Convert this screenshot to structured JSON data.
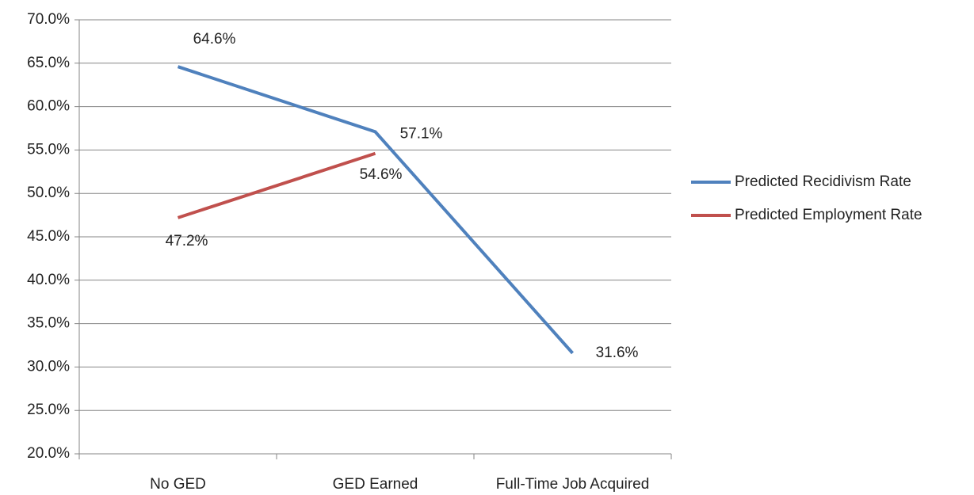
{
  "chart_data": {
    "type": "line",
    "categories": [
      "No GED",
      "GED Earned",
      "Full-Time Job Acquired"
    ],
    "series": [
      {
        "name": "Predicted Recidivism Rate",
        "color": "#4f81bd",
        "values": [
          64.6,
          57.1,
          31.6
        ],
        "value_labels": [
          "64.6%",
          "57.1%",
          "31.6%"
        ]
      },
      {
        "name": "Predicted Employment Rate",
        "color": "#c0504d",
        "values": [
          47.2,
          54.6,
          null
        ],
        "value_labels": [
          "47.2%",
          "54.6%",
          null
        ]
      }
    ],
    "ylim": [
      20,
      70
    ],
    "yticks": [
      {
        "value": 20,
        "label": "20.0%"
      },
      {
        "value": 25,
        "label": "25.0%"
      },
      {
        "value": 30,
        "label": "30.0%"
      },
      {
        "value": 35,
        "label": "35.0%"
      },
      {
        "value": 40,
        "label": "40.0%"
      },
      {
        "value": 45,
        "label": "45.0%"
      },
      {
        "value": 50,
        "label": "50.0%"
      },
      {
        "value": 55,
        "label": "55.0%"
      },
      {
        "value": 60,
        "label": "60.0%"
      },
      {
        "value": 65,
        "label": "65.0%"
      },
      {
        "value": 70,
        "label": "70.0%"
      }
    ],
    "grid": true,
    "legend": "right"
  }
}
